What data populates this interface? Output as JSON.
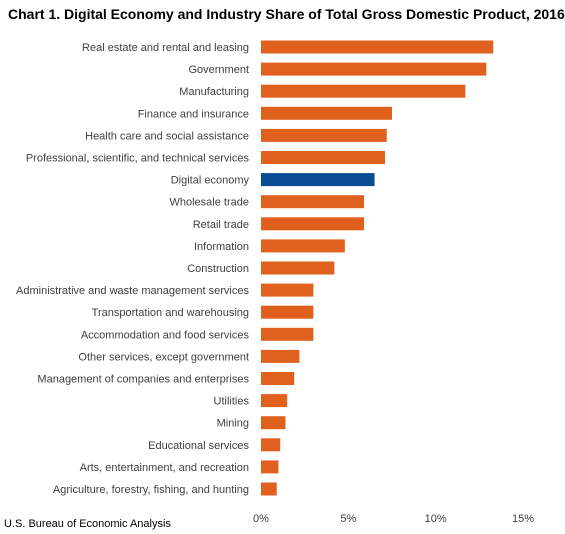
{
  "title": "Chart 1. Digital Economy and Industry Share of Total Gross Domestic Product, 2016",
  "source": "U.S. Bureau of Economic Analysis",
  "colors": {
    "industry": "#e0611e",
    "highlight": "#0b4d94"
  },
  "chart_data": {
    "type": "bar",
    "orientation": "horizontal",
    "title": "Chart 1. Digital Economy and Industry Share of Total Gross Domestic Product, 2016",
    "xlabel": "",
    "ylabel": "",
    "xlim": [
      0,
      15
    ],
    "x_ticks": [
      0,
      5,
      10,
      15
    ],
    "x_tick_labels": [
      "0%",
      "5%",
      "10%",
      "15%"
    ],
    "value_unit": "percent",
    "grid": false,
    "legend": "none",
    "highlight_category": "Digital economy",
    "categories": [
      "Real estate and rental and leasing",
      "Government",
      "Manufacturing",
      "Finance and insurance",
      "Health care and social assistance",
      "Professional, scientific, and technical services",
      "Digital economy",
      "Wholesale trade",
      "Retail trade",
      "Information",
      "Construction",
      "Administrative and waste management services",
      "Transportation and warehousing",
      "Accommodation and food services",
      "Other services, except government",
      "Management of companies and enterprises",
      "Utilities",
      "Mining",
      "Educational services",
      "Arts, entertainment, and recreation",
      "Agriculture, forestry, fishing, and hunting"
    ],
    "values": [
      13.3,
      12.9,
      11.7,
      7.5,
      7.2,
      7.1,
      6.5,
      5.9,
      5.9,
      4.8,
      4.2,
      3.0,
      3.0,
      3.0,
      2.2,
      1.9,
      1.5,
      1.4,
      1.1,
      1.0,
      0.9
    ]
  }
}
